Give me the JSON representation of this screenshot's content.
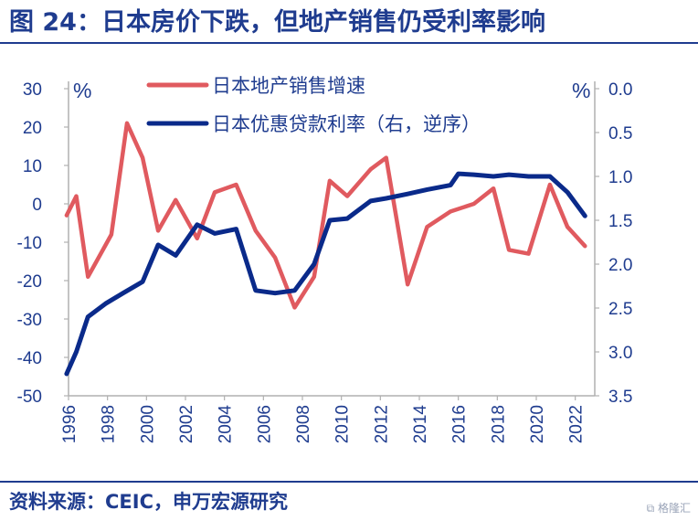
{
  "title": "图 24：日本房价下跌，但地产销售仍受利率影响",
  "source": "资料来源：CEIC，申万宏源研究",
  "watermark": "格隆汇",
  "colors": {
    "brand": "#1f3c8f",
    "sales": "#e05a5f",
    "rate": "#0a2a8a"
  },
  "chart_data": {
    "type": "line",
    "title": "",
    "y_left": {
      "unit": "%",
      "ticks": [
        30,
        20,
        10,
        0,
        -10,
        -20,
        -30,
        -40,
        -50
      ],
      "ylim": [
        -50,
        30
      ]
    },
    "y_right": {
      "unit": "%",
      "inverted": true,
      "ticks": [
        "0.0",
        "0.5",
        "1.0",
        "1.5",
        "2.0",
        "2.5",
        "3.0",
        "3.5"
      ],
      "ylim": [
        0,
        3.5
      ]
    },
    "x_ticks": [
      "1996",
      "1998",
      "2000",
      "2002",
      "2004",
      "2006",
      "2008",
      "2010",
      "2012",
      "2014",
      "2016",
      "2018",
      "2020",
      "2022"
    ],
    "legend_position": "top",
    "grid": false,
    "series": [
      {
        "name": "日本地产销售增速",
        "axis": "left",
        "color": "#e05a5f",
        "points": [
          [
            1995.9,
            -3
          ],
          [
            1996.4,
            2
          ],
          [
            1997.0,
            -19
          ],
          [
            1998.2,
            -8
          ],
          [
            1999.0,
            21
          ],
          [
            1999.8,
            12
          ],
          [
            2000.6,
            -7
          ],
          [
            2001.5,
            1
          ],
          [
            2002.6,
            -9
          ],
          [
            2003.5,
            3
          ],
          [
            2004.6,
            5
          ],
          [
            2005.6,
            -7
          ],
          [
            2006.6,
            -14
          ],
          [
            2007.6,
            -27
          ],
          [
            2008.6,
            -19
          ],
          [
            2009.4,
            6
          ],
          [
            2010.3,
            2
          ],
          [
            2011.5,
            9
          ],
          [
            2012.3,
            12
          ],
          [
            2013.4,
            -21
          ],
          [
            2014.4,
            -6
          ],
          [
            2015.6,
            -2
          ],
          [
            2016.8,
            0
          ],
          [
            2017.8,
            4
          ],
          [
            2018.6,
            -12
          ],
          [
            2019.6,
            -13
          ],
          [
            2020.7,
            5
          ],
          [
            2021.6,
            -6
          ],
          [
            2022.5,
            -11
          ]
        ]
      },
      {
        "name": "日本优惠贷款利率（右，逆序）",
        "axis": "right",
        "color": "#0a2a8a",
        "points": [
          [
            1995.9,
            3.25
          ],
          [
            1996.4,
            3.0
          ],
          [
            1997.0,
            2.6
          ],
          [
            1997.9,
            2.45
          ],
          [
            1998.8,
            2.33
          ],
          [
            1999.8,
            2.2
          ],
          [
            2000.6,
            1.78
          ],
          [
            2001.5,
            1.9
          ],
          [
            2002.6,
            1.55
          ],
          [
            2003.5,
            1.65
          ],
          [
            2004.6,
            1.6
          ],
          [
            2005.6,
            2.3
          ],
          [
            2006.6,
            2.33
          ],
          [
            2007.6,
            2.3
          ],
          [
            2008.6,
            2.0
          ],
          [
            2009.4,
            1.5
          ],
          [
            2010.3,
            1.48
          ],
          [
            2011.5,
            1.28
          ],
          [
            2012.3,
            1.25
          ],
          [
            2013.4,
            1.2
          ],
          [
            2014.4,
            1.15
          ],
          [
            2015.6,
            1.1
          ],
          [
            2016.0,
            0.97
          ],
          [
            2016.8,
            0.98
          ],
          [
            2017.8,
            1.0
          ],
          [
            2018.6,
            0.98
          ],
          [
            2019.6,
            1.0
          ],
          [
            2020.7,
            1.0
          ],
          [
            2021.6,
            1.18
          ],
          [
            2022.5,
            1.45
          ]
        ]
      }
    ]
  }
}
